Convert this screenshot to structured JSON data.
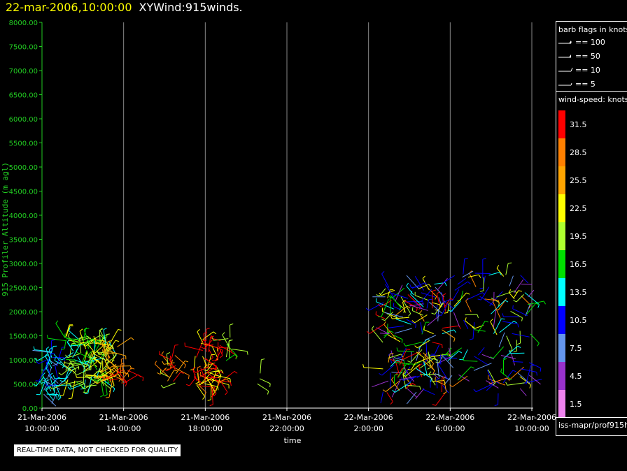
{
  "title": {
    "datetime": "22-mar-2006,10:00:00",
    "product": "XYWind:915winds."
  },
  "legend": {
    "barb_title": "barb flags in knots",
    "barbs": [
      {
        "label": "== 100",
        "value": 100
      },
      {
        "label": "== 50",
        "value": 50
      },
      {
        "label": "== 10",
        "value": 10
      },
      {
        "label": "== 5",
        "value": 5
      }
    ],
    "colorbar_title": "wind-speed: knots",
    "colorbar": [
      {
        "label": "31.5",
        "color": "#ff0000"
      },
      {
        "label": "28.5",
        "color": "#ff8000"
      },
      {
        "label": "25.5",
        "color": "#ffa500"
      },
      {
        "label": "22.5",
        "color": "#ffff00"
      },
      {
        "label": "19.5",
        "color": "#adff2f"
      },
      {
        "label": "16.5",
        "color": "#00e000"
      },
      {
        "label": "13.5",
        "color": "#00ffff"
      },
      {
        "label": "10.5",
        "color": "#0000ff"
      },
      {
        "label": "7.5",
        "color": "#6495ed"
      },
      {
        "label": "4.5",
        "color": "#9932cc"
      },
      {
        "label": "1.5",
        "color": "#ee82ee"
      }
    ],
    "source": "iss-mapr/prof915h"
  },
  "notice": "REAL-TIME DATA, NOT CHECKED FOR QUALITY",
  "chart_data": {
    "type": "scatter",
    "ylabel": "915 Profiler Altitude (m agl)",
    "xlabel": "time",
    "ylim": [
      0,
      8000
    ],
    "yticks": [
      "0.00",
      "500.00",
      "1000.00",
      "1500.00",
      "2000.00",
      "2500.00",
      "3000.00",
      "3500.00",
      "4000.00",
      "4500.00",
      "5000.00",
      "5500.00",
      "6000.00",
      "6500.00",
      "7000.00",
      "7500.00",
      "8000.00"
    ],
    "xlim_hours": [
      0,
      24
    ],
    "xticks": [
      {
        "hour": 0,
        "date": "21-Mar-2006",
        "time": "10:00:00"
      },
      {
        "hour": 4,
        "date": "21-Mar-2006",
        "time": "14:00:00"
      },
      {
        "hour": 8,
        "date": "21-Mar-2006",
        "time": "18:00:00"
      },
      {
        "hour": 12,
        "date": "21-Mar-2006",
        "time": "22:00:00"
      },
      {
        "hour": 16,
        "date": "22-Mar-2006",
        "time": "2:00:00"
      },
      {
        "hour": 20,
        "date": "22-Mar-2006",
        "time": "6:00:00"
      },
      {
        "hour": 24,
        "date": "22-Mar-2006",
        "time": "10:00:00"
      }
    ],
    "grid": "vertical",
    "clusters": [
      {
        "t0": 0.0,
        "t1": 0.9,
        "h0": 150,
        "h1": 1200,
        "speeds": [
          8,
          10,
          12,
          14
        ],
        "count": 40
      },
      {
        "t0": 1.1,
        "t1": 3.3,
        "h0": 450,
        "h1": 1500,
        "speeds": [
          16,
          18,
          20,
          22,
          14
        ],
        "count": 120
      },
      {
        "t0": 3.1,
        "t1": 3.7,
        "h0": 550,
        "h1": 1300,
        "speeds": [
          24,
          26,
          22
        ],
        "count": 25
      },
      {
        "t0": 3.6,
        "t1": 4.2,
        "h0": 500,
        "h1": 800,
        "speeds": [
          28,
          31
        ],
        "count": 12
      },
      {
        "t0": 6.1,
        "t1": 6.6,
        "h0": 500,
        "h1": 1150,
        "speeds": [
          24,
          27,
          30,
          20
        ],
        "count": 18
      },
      {
        "t0": 7.5,
        "t1": 8.8,
        "h0": 450,
        "h1": 1450,
        "speeds": [
          27,
          30,
          32,
          22
        ],
        "count": 60
      },
      {
        "t0": 8.8,
        "t1": 9.3,
        "h0": 800,
        "h1": 1550,
        "speeds": [
          16,
          18,
          20
        ],
        "count": 8
      },
      {
        "t0": 10.5,
        "t1": 10.7,
        "h0": 500,
        "h1": 800,
        "speeds": [
          18,
          20
        ],
        "count": 3
      },
      {
        "t0": 16.7,
        "t1": 19.8,
        "h0": 300,
        "h1": 2600,
        "speeds": [
          6,
          9,
          12,
          15,
          18,
          22,
          26,
          30,
          4,
          11
        ],
        "count": 170
      },
      {
        "t0": 19.8,
        "t1": 24.0,
        "h0": 300,
        "h1": 2800,
        "speeds": [
          6,
          9,
          12,
          15,
          19,
          23,
          27,
          10,
          4
        ],
        "count": 110
      }
    ]
  }
}
